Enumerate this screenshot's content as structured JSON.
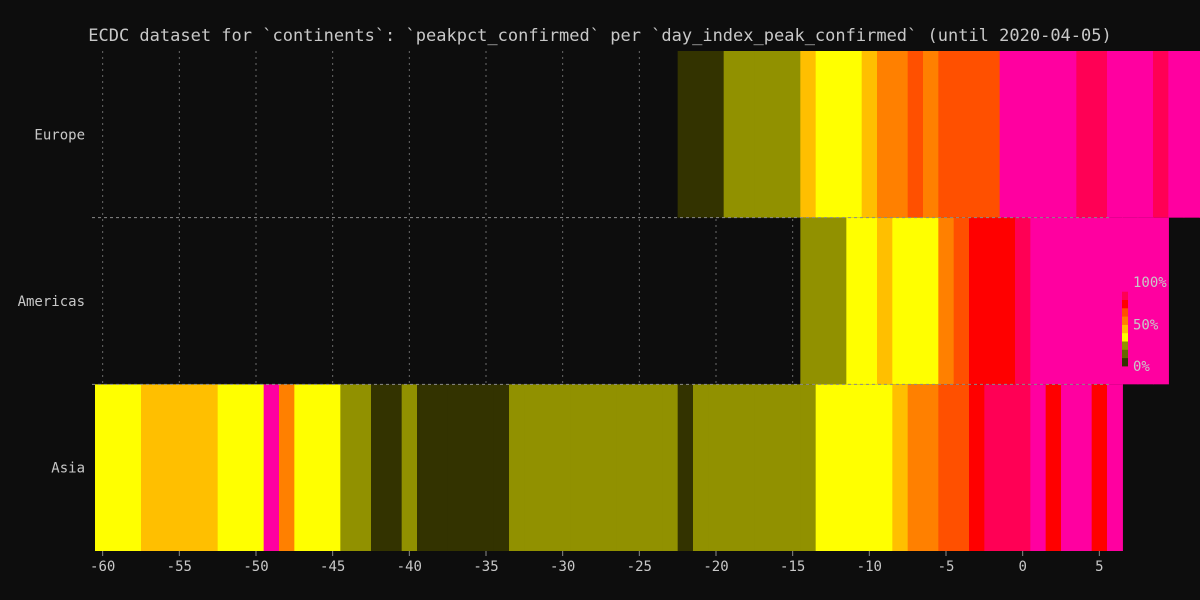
{
  "chart_data": {
    "type": "heatmap",
    "title": "ECDC dataset for `continents`: `peakpct_confirmed` per `day_index_peak_confirmed` (until 2020-04-05)",
    "xlabel": "",
    "ylabel": "",
    "xlim": [
      -60.5,
      5.5
    ],
    "xticks": [
      -60,
      -55,
      -50,
      -45,
      -40,
      -35,
      -30,
      -25,
      -20,
      -15,
      -10,
      -5,
      0,
      5
    ],
    "xtick_labels": [
      "-60",
      "-55",
      "-50",
      "-45",
      "-40",
      "-35",
      "-30",
      "-25",
      "-20",
      "-15",
      "-10",
      "-5",
      "0",
      "5"
    ],
    "grid": true,
    "legend": {
      "placement": "right",
      "type": "colorbar",
      "labels": [
        "100%",
        "50%",
        "0%"
      ]
    },
    "palette": [
      "#333300",
      "#666600",
      "#919100",
      "#ffff00",
      "#ffbf00",
      "#ff8000",
      "#ff5000",
      "#ff0000",
      "#ff0055",
      "#ff00a0"
    ],
    "rows": [
      {
        "name": "Europe",
        "start_day": -22,
        "levels": [
          0,
          0,
          0,
          2,
          2,
          2,
          2,
          2,
          4,
          3,
          3,
          3,
          4,
          5,
          5,
          6,
          5,
          6,
          6,
          6,
          6,
          9,
          9,
          9,
          9,
          9,
          8,
          8,
          9,
          9,
          9,
          8,
          9,
          9,
          9
        ]
      },
      {
        "name": "Americas",
        "start_day": -14,
        "levels": [
          2,
          2,
          2,
          3,
          3,
          4,
          3,
          3,
          3,
          5,
          6,
          7,
          7,
          7,
          8,
          9,
          9,
          9,
          9,
          9,
          9,
          9,
          9,
          9
        ]
      },
      {
        "name": "Asia",
        "start_day": -60,
        "levels": [
          3,
          3,
          3,
          4,
          4,
          4,
          4,
          4,
          3,
          3,
          3,
          9,
          5,
          3,
          3,
          3,
          2,
          2,
          0,
          0,
          2,
          0,
          0,
          0,
          0,
          0,
          0,
          2,
          2,
          2,
          2,
          2,
          2,
          2,
          2,
          2,
          2,
          2,
          0,
          2,
          2,
          2,
          2,
          2,
          2,
          2,
          2,
          3,
          3,
          3,
          3,
          3,
          4,
          5,
          5,
          6,
          6,
          7,
          8,
          8,
          8,
          9,
          7,
          9,
          9,
          7,
          9
        ]
      }
    ]
  }
}
